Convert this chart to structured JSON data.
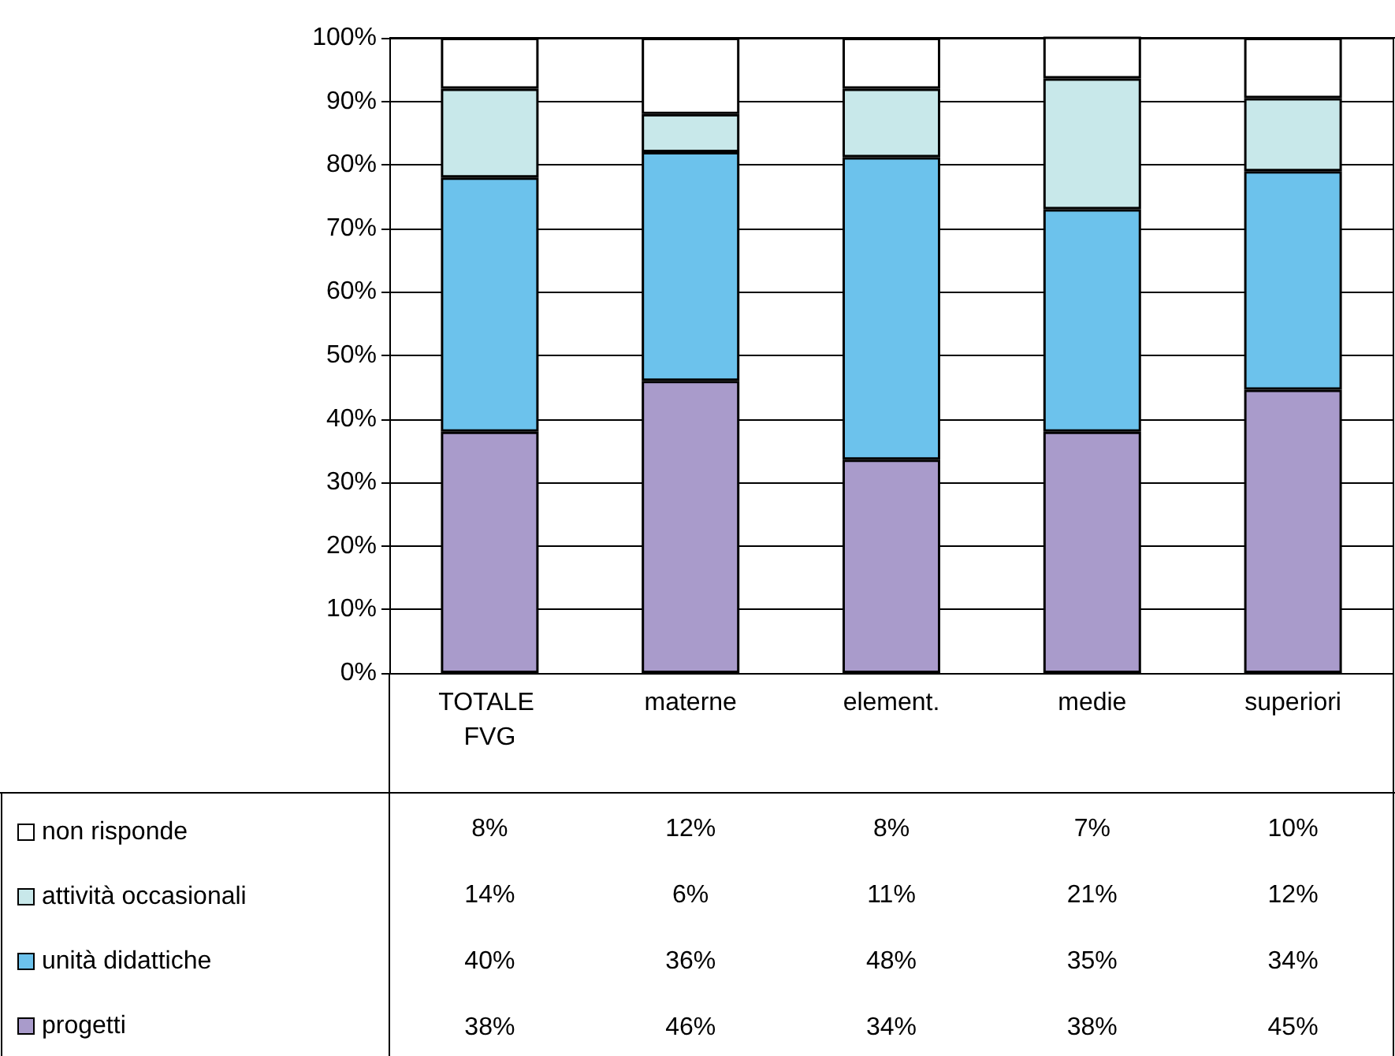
{
  "chart_data": {
    "type": "bar",
    "stacked": true,
    "categories": [
      "TOTALE FVG",
      "materne",
      "element.",
      "medie",
      "superiori"
    ],
    "series": [
      {
        "name": "progetti",
        "color": "#a99bcb",
        "values": [
          38,
          46,
          33.6,
          38,
          44.6
        ],
        "value_labels": [
          "38%",
          "46%",
          "34%",
          "38%",
          "45%"
        ]
      },
      {
        "name": "unità didattiche",
        "color": "#6cc2ec",
        "values": [
          40,
          36,
          47.6,
          35,
          34.4
        ],
        "value_labels": [
          "40%",
          "36%",
          "48%",
          "35%",
          "34%"
        ]
      },
      {
        "name": "attività occasionali",
        "color": "#c8e8ea",
        "values": [
          14,
          6,
          10.8,
          20.6,
          11.5
        ],
        "value_labels": [
          "14%",
          "6%",
          "11%",
          "21%",
          "12%"
        ]
      },
      {
        "name": "non risponde",
        "color": "#ffffff",
        "values": [
          8,
          12,
          8,
          6.6,
          9.5
        ],
        "value_labels": [
          "8%",
          "12%",
          "8%",
          "7%",
          "10%"
        ]
      }
    ],
    "ylim": [
      0,
      100
    ],
    "yticks": [
      {
        "value": 0,
        "label": "0%"
      },
      {
        "value": 10,
        "label": "10%"
      },
      {
        "value": 20,
        "label": "20%"
      },
      {
        "value": 30,
        "label": "30%"
      },
      {
        "value": 40,
        "label": "40%"
      },
      {
        "value": 50,
        "label": "50%"
      },
      {
        "value": 60,
        "label": "60%"
      },
      {
        "value": 70,
        "label": "70%"
      },
      {
        "value": 80,
        "label": "80%"
      },
      {
        "value": 90,
        "label": "90%"
      },
      {
        "value": 100,
        "label": "100%"
      }
    ],
    "grid": "y",
    "legend": "bottom left"
  }
}
